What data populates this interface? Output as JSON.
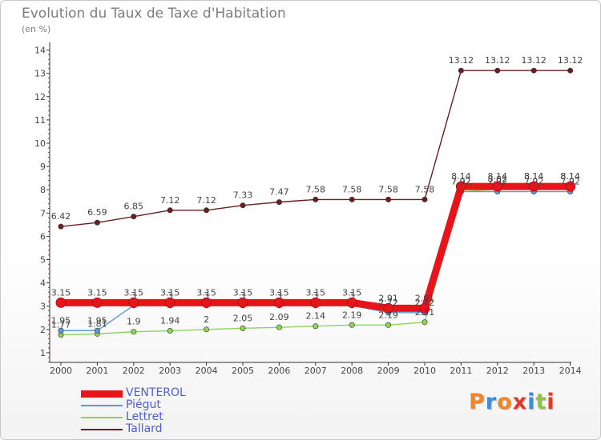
{
  "title": "Evolution du Taux de Taxe d'Habitation",
  "subtitle": "(en %)",
  "logo": {
    "letters": [
      "P",
      "r",
      "o",
      "x",
      "i",
      "t",
      "i"
    ],
    "colors": [
      "#f0862c",
      "#3b8fd6",
      "#f0862c",
      "#e03a2a",
      "#3b8fd6",
      "#8cc63f",
      "#e03a2a"
    ]
  },
  "chart_data": {
    "type": "line",
    "x": [
      "2000",
      "2001",
      "2002",
      "2003",
      "2004",
      "2005",
      "2006",
      "2007",
      "2008",
      "2009",
      "2010",
      "2011",
      "2012",
      "2013",
      "2014"
    ],
    "ylim": [
      0,
      14
    ],
    "yticks": [
      "1",
      "2",
      "3",
      "4",
      "5",
      "6",
      "7",
      "8",
      "9",
      "10",
      "11",
      "12",
      "13",
      "14"
    ],
    "grid": false,
    "legend_position": "bottom-left",
    "series": [
      {
        "name": "Tallard",
        "color": "#6b1e1e",
        "values": [
          6.42,
          6.59,
          6.85,
          7.12,
          7.12,
          7.33,
          7.47,
          7.58,
          7.58,
          7.58,
          7.58,
          13.12,
          13.12,
          13.12,
          13.12
        ],
        "labels": [
          "6.42",
          "6.59",
          "6.85",
          "7.12",
          "7.12",
          "7.33",
          "7.47",
          "7.58",
          "7.58",
          "7.58",
          "7.58",
          "13.12",
          "13.12",
          "13.12",
          "13.12"
        ]
      },
      {
        "name": "Lettret",
        "color": "#8fd45a",
        "values": [
          1.77,
          1.81,
          1.9,
          1.94,
          2,
          2.05,
          2.09,
          2.14,
          2.19,
          2.19,
          2.31,
          7.92,
          8.02,
          8.14,
          8.14
        ],
        "labels": [
          "1.77",
          "1.81",
          "1.9",
          "1.94",
          "2",
          "2.05",
          "2.09",
          "2.14",
          "2.19",
          "2.19",
          "2.31",
          "7.92",
          "8.02",
          "8.14",
          "8.14"
        ]
      },
      {
        "name": "Piégut",
        "color": "#5b9bd5",
        "values": [
          1.95,
          1.95,
          3.03,
          3.03,
          3.03,
          3.03,
          3.03,
          3.03,
          3.03,
          2.72,
          2.72,
          7.92,
          7.92,
          7.92,
          7.92
        ],
        "labels": [
          "1.95",
          "1.95",
          "3",
          "3",
          "3",
          "3",
          "3",
          "3",
          "3",
          "2.72",
          "2.72",
          "7.92",
          "7.92",
          "7.92",
          "7.92"
        ]
      },
      {
        "name": "VENTEROL",
        "color": "#e8141b",
        "values": [
          3.15,
          3.15,
          3.15,
          3.15,
          3.15,
          3.15,
          3.15,
          3.15,
          3.15,
          2.91,
          2.91,
          8.14,
          8.14,
          8.14,
          8.14
        ],
        "labels": [
          "3.15",
          "3.15",
          "3.15",
          "3.15",
          "3.15",
          "3.15",
          "3.15",
          "3.15",
          "3.15",
          "2.91",
          "2.91",
          "8.14",
          "8.14",
          "8.14",
          "8.14"
        ]
      }
    ],
    "legend": [
      "VENTEROL",
      "Piégut",
      "Lettret",
      "Tallard"
    ]
  }
}
